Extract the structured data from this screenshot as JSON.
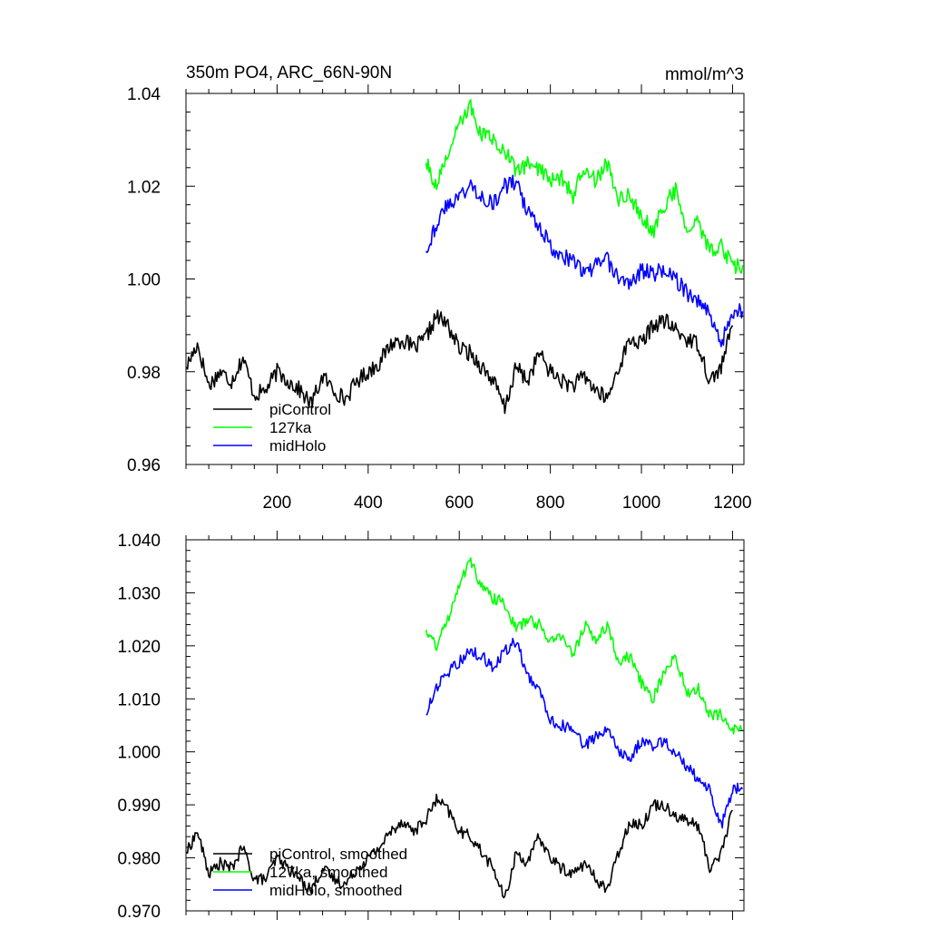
{
  "chart_data": [
    {
      "type": "line",
      "title": "350m PO4, ARC_66N-90N",
      "units": "mmol/m^3",
      "xlim": [
        0,
        1225
      ],
      "ylim": [
        0.96,
        1.04
      ],
      "xticks": [
        200,
        400,
        600,
        800,
        1000,
        1200
      ],
      "xtick_labels": [
        "200",
        "400",
        "600",
        "800",
        "1000",
        "1200"
      ],
      "yticks": [
        0.96,
        0.98,
        1.0,
        1.02,
        1.04
      ],
      "ytick_labels": [
        "0.96",
        "0.98",
        "1.00",
        "1.02",
        "1.04"
      ],
      "legend_position": "lower-left",
      "series": [
        {
          "name": "piControl",
          "color": "#000000",
          "x": [
            1,
            25,
            50,
            75,
            100,
            125,
            150,
            175,
            200,
            225,
            250,
            275,
            300,
            325,
            350,
            375,
            400,
            425,
            450,
            475,
            500,
            525,
            550,
            575,
            600,
            625,
            650,
            675,
            700,
            725,
            750,
            775,
            800,
            825,
            850,
            875,
            900,
            925,
            950,
            975,
            1000,
            1025,
            1050,
            1075,
            1100,
            1125,
            1150,
            1175,
            1200
          ],
          "y": [
            0.981,
            0.986,
            0.977,
            0.98,
            0.978,
            0.983,
            0.975,
            0.976,
            0.98,
            0.978,
            0.976,
            0.973,
            0.979,
            0.976,
            0.974,
            0.978,
            0.98,
            0.982,
            0.986,
            0.987,
            0.985,
            0.987,
            0.992,
            0.99,
            0.985,
            0.984,
            0.981,
            0.978,
            0.972,
            0.981,
            0.978,
            0.984,
            0.98,
            0.978,
            0.977,
            0.979,
            0.976,
            0.974,
            0.981,
            0.987,
            0.986,
            0.99,
            0.991,
            0.989,
            0.987,
            0.986,
            0.978,
            0.981,
            0.99
          ]
        },
        {
          "name": "127ka",
          "color": "#00ff00",
          "x": [
            527,
            550,
            575,
            600,
            625,
            650,
            675,
            700,
            725,
            750,
            775,
            800,
            825,
            850,
            875,
            900,
            925,
            950,
            975,
            1000,
            1025,
            1050,
            1075,
            1100,
            1125,
            1150,
            1175,
            1200,
            1222
          ],
          "y": [
            1.025,
            1.02,
            1.027,
            1.033,
            1.037,
            1.031,
            1.03,
            1.028,
            1.023,
            1.025,
            1.024,
            1.021,
            1.022,
            1.018,
            1.024,
            1.021,
            1.025,
            1.017,
            1.018,
            1.014,
            1.01,
            1.016,
            1.019,
            1.011,
            1.012,
            1.006,
            1.007,
            1.003,
            1.003
          ]
        },
        {
          "name": "midHolo",
          "color": "#0000ff",
          "x": [
            527,
            550,
            575,
            600,
            625,
            650,
            675,
            700,
            725,
            750,
            775,
            800,
            825,
            850,
            875,
            900,
            925,
            950,
            975,
            1000,
            1025,
            1050,
            1075,
            1100,
            1125,
            1150,
            1175,
            1200,
            1222
          ],
          "y": [
            1.006,
            1.012,
            1.016,
            1.018,
            1.02,
            1.018,
            1.016,
            1.02,
            1.021,
            1.014,
            1.012,
            1.007,
            1.005,
            1.004,
            1.001,
            1.003,
            1.004,
            1.0,
            0.999,
            1.002,
            1.001,
            1.002,
            1.0,
            0.997,
            0.995,
            0.993,
            0.986,
            0.993,
            0.993
          ]
        }
      ]
    },
    {
      "type": "line",
      "xlim": [
        0,
        1225
      ],
      "ylim": [
        0.97,
        1.04
      ],
      "xticks": [
        200,
        400,
        600,
        800,
        1000,
        1200
      ],
      "yticks": [
        0.97,
        0.98,
        0.99,
        1.0,
        1.01,
        1.02,
        1.03,
        1.04
      ],
      "ytick_labels": [
        "0.970",
        "0.980",
        "0.990",
        "1.000",
        "1.010",
        "1.020",
        "1.030",
        "1.040"
      ],
      "legend_position": "lower-left",
      "series": [
        {
          "name": "piControl, smoothed",
          "color": "#000000",
          "x": [
            1,
            25,
            50,
            75,
            100,
            125,
            150,
            175,
            200,
            225,
            250,
            275,
            300,
            325,
            350,
            375,
            400,
            425,
            450,
            475,
            500,
            525,
            550,
            575,
            600,
            625,
            650,
            675,
            700,
            725,
            750,
            775,
            800,
            825,
            850,
            875,
            900,
            925,
            950,
            975,
            1000,
            1025,
            1050,
            1075,
            1100,
            1125,
            1150,
            1175,
            1200
          ],
          "y": [
            0.981,
            0.985,
            0.977,
            0.979,
            0.978,
            0.982,
            0.976,
            0.976,
            0.98,
            0.978,
            0.976,
            0.974,
            0.978,
            0.976,
            0.975,
            0.978,
            0.98,
            0.982,
            0.985,
            0.987,
            0.985,
            0.987,
            0.991,
            0.989,
            0.985,
            0.984,
            0.981,
            0.978,
            0.972,
            0.981,
            0.979,
            0.984,
            0.98,
            0.978,
            0.977,
            0.979,
            0.976,
            0.974,
            0.981,
            0.987,
            0.986,
            0.99,
            0.99,
            0.988,
            0.987,
            0.986,
            0.978,
            0.981,
            0.989
          ]
        },
        {
          "name": "127ka, smoothed",
          "color": "#00ff00",
          "x": [
            527,
            550,
            575,
            600,
            625,
            650,
            675,
            700,
            725,
            750,
            775,
            800,
            825,
            850,
            875,
            900,
            925,
            950,
            975,
            1000,
            1025,
            1050,
            1075,
            1100,
            1125,
            1150,
            1175,
            1200,
            1222
          ],
          "y": [
            1.023,
            1.02,
            1.025,
            1.032,
            1.036,
            1.031,
            1.029,
            1.028,
            1.023,
            1.025,
            1.024,
            1.021,
            1.022,
            1.018,
            1.024,
            1.021,
            1.024,
            1.017,
            1.018,
            1.013,
            1.01,
            1.015,
            1.018,
            1.011,
            1.012,
            1.007,
            1.007,
            1.004,
            1.004
          ]
        },
        {
          "name": "midHolo, smoothed",
          "color": "#0000ff",
          "x": [
            527,
            550,
            575,
            600,
            625,
            650,
            675,
            700,
            725,
            750,
            775,
            800,
            825,
            850,
            875,
            900,
            925,
            950,
            975,
            1000,
            1025,
            1050,
            1075,
            1100,
            1125,
            1150,
            1175,
            1200,
            1222
          ],
          "y": [
            1.007,
            1.012,
            1.015,
            1.017,
            1.019,
            1.018,
            1.016,
            1.019,
            1.021,
            1.014,
            1.012,
            1.006,
            1.005,
            1.004,
            1.001,
            1.003,
            1.004,
            1.0,
            0.999,
            1.002,
            1.001,
            1.002,
            1.0,
            0.997,
            0.995,
            0.993,
            0.986,
            0.993,
            0.993
          ]
        }
      ]
    }
  ]
}
